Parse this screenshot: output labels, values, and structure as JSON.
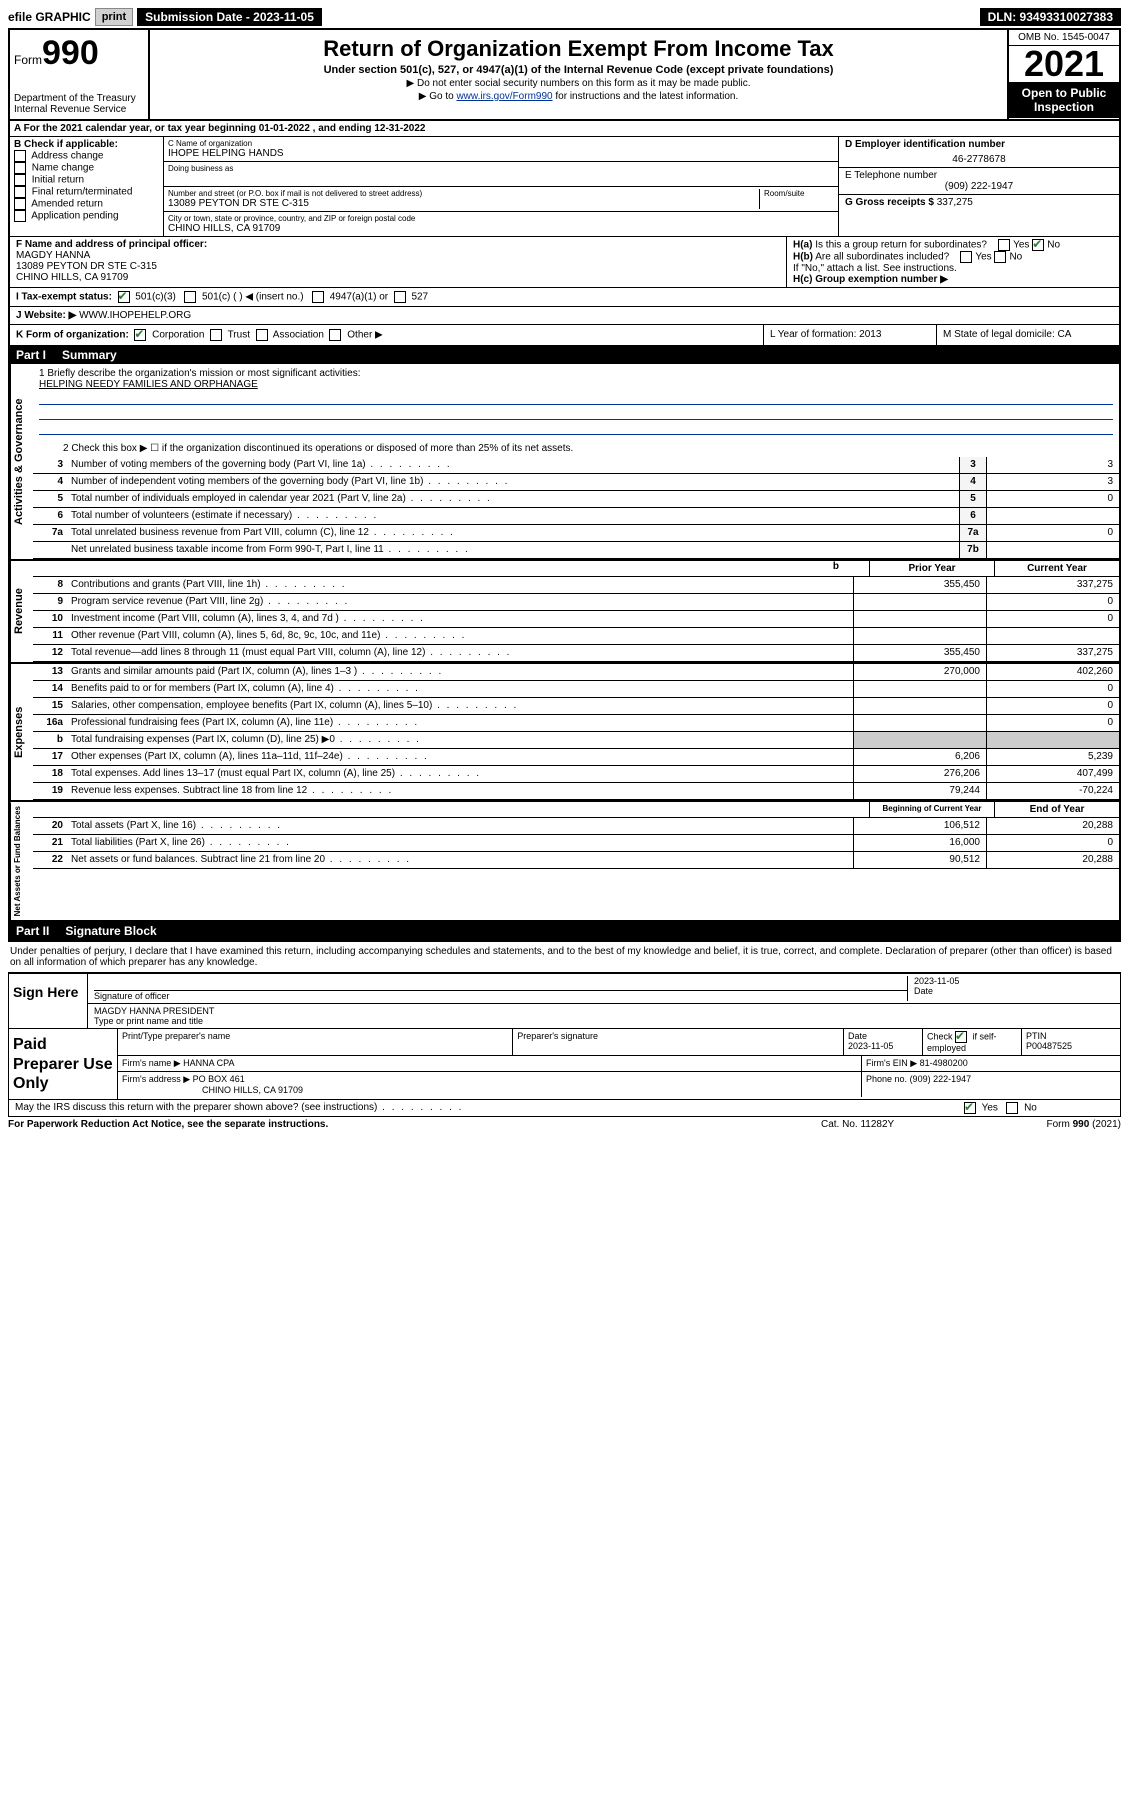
{
  "topbar": {
    "efile": "efile GRAPHIC",
    "print": "print",
    "sub_label": "Submission Date - 2023-11-05",
    "dln": "DLN: 93493310027383"
  },
  "header": {
    "form_word": "Form",
    "form_num": "990",
    "dept": "Department of the Treasury",
    "irs": "Internal Revenue Service",
    "title": "Return of Organization Exempt From Income Tax",
    "sub1": "Under section 501(c), 527, or 4947(a)(1) of the Internal Revenue Code (except private foundations)",
    "sub2": "▶ Do not enter social security numbers on this form as it may be made public.",
    "sub3_pre": "▶ Go to ",
    "sub3_link": "www.irs.gov/Form990",
    "sub3_post": " for instructions and the latest information.",
    "omb": "OMB No. 1545-0047",
    "year": "2021",
    "open": "Open to Public Inspection"
  },
  "a_line": "A For the 2021 calendar year, or tax year beginning 01-01-2022   , and ending 12-31-2022",
  "b": {
    "label": "B Check if applicable:",
    "items": [
      "Address change",
      "Name change",
      "Initial return",
      "Final return/terminated",
      "Amended return",
      "Application pending"
    ]
  },
  "c": {
    "name_label": "C Name of organization",
    "name": "IHOPE HELPING HANDS",
    "dba_label": "Doing business as",
    "addr_label": "Number and street (or P.O. box if mail is not delivered to street address)",
    "room_label": "Room/suite",
    "addr": "13089 PEYTON DR STE C-315",
    "city_label": "City or town, state or province, country, and ZIP or foreign postal code",
    "city": "CHINO HILLS, CA  91709"
  },
  "d": {
    "ein_label": "D Employer identification number",
    "ein": "46-2778678",
    "phone_label": "E Telephone number",
    "phone": "(909) 222-1947",
    "gross_label": "G Gross receipts $",
    "gross": "337,275"
  },
  "f": {
    "label": "F Name and address of principal officer:",
    "name": "MAGDY HANNA",
    "addr1": "13089 PEYTON DR STE C-315",
    "addr2": "CHINO HILLS, CA  91709"
  },
  "h": {
    "a_label": "H(a) Is this a group return for subordinates?",
    "yes": "Yes",
    "no": "No",
    "b_label": "H(b) Are all subordinates included?",
    "b_note": "If \"No,\" attach a list. See instructions.",
    "c_label": "H(c) Group exemption number ▶"
  },
  "i": {
    "label": "I   Tax-exempt status:",
    "c3": "501(c)(3)",
    "c_other": "501(c) (  ) ◀ (insert no.)",
    "a1": "4947(a)(1) or",
    "s527": "527"
  },
  "j": {
    "label": "J   Website: ▶",
    "val": "WWW.IHOPEHELP.ORG"
  },
  "k": {
    "label": "K Form of organization:",
    "corp": "Corporation",
    "trust": "Trust",
    "assoc": "Association",
    "other": "Other ▶"
  },
  "l": {
    "label": "L Year of formation: 2013"
  },
  "m": {
    "label": "M State of legal domicile: CA"
  },
  "part1": {
    "label": "Part I",
    "title": "Summary"
  },
  "mission": {
    "q": "1  Briefly describe the organization's mission or most significant activities:",
    "text": "HELPING NEEDY FAMILIES AND ORPHANAGE"
  },
  "line2": "2  Check this box ▶ ☐ if the organization discontinued its operations or disposed of more than 25% of its net assets.",
  "gov_lines": [
    {
      "n": "3",
      "d": "Number of voting members of the governing body (Part VI, line 1a)",
      "box": "3",
      "v": "3"
    },
    {
      "n": "4",
      "d": "Number of independent voting members of the governing body (Part VI, line 1b)",
      "box": "4",
      "v": "3"
    },
    {
      "n": "5",
      "d": "Total number of individuals employed in calendar year 2021 (Part V, line 2a)",
      "box": "5",
      "v": "0"
    },
    {
      "n": "6",
      "d": "Total number of volunteers (estimate if necessary)",
      "box": "6",
      "v": ""
    },
    {
      "n": "7a",
      "d": "Total unrelated business revenue from Part VIII, column (C), line 12",
      "box": "7a",
      "v": "0"
    },
    {
      "n": "",
      "d": "Net unrelated business taxable income from Form 990-T, Part I, line 11",
      "box": "7b",
      "v": ""
    }
  ],
  "col_head": {
    "blank": "b",
    "prior": "Prior Year",
    "curr": "Current Year"
  },
  "rev_lines": [
    {
      "n": "8",
      "d": "Contributions and grants (Part VIII, line 1h)",
      "p": "355,450",
      "c": "337,275"
    },
    {
      "n": "9",
      "d": "Program service revenue (Part VIII, line 2g)",
      "p": "",
      "c": "0"
    },
    {
      "n": "10",
      "d": "Investment income (Part VIII, column (A), lines 3, 4, and 7d )",
      "p": "",
      "c": "0"
    },
    {
      "n": "11",
      "d": "Other revenue (Part VIII, column (A), lines 5, 6d, 8c, 9c, 10c, and 11e)",
      "p": "",
      "c": ""
    },
    {
      "n": "12",
      "d": "Total revenue—add lines 8 through 11 (must equal Part VIII, column (A), line 12)",
      "p": "355,450",
      "c": "337,275"
    }
  ],
  "exp_lines": [
    {
      "n": "13",
      "d": "Grants and similar amounts paid (Part IX, column (A), lines 1–3 )",
      "p": "270,000",
      "c": "402,260"
    },
    {
      "n": "14",
      "d": "Benefits paid to or for members (Part IX, column (A), line 4)",
      "p": "",
      "c": "0"
    },
    {
      "n": "15",
      "d": "Salaries, other compensation, employee benefits (Part IX, column (A), lines 5–10)",
      "p": "",
      "c": "0"
    },
    {
      "n": "16a",
      "d": "Professional fundraising fees (Part IX, column (A), line 11e)",
      "p": "",
      "c": "0"
    },
    {
      "n": "b",
      "d": "Total fundraising expenses (Part IX, column (D), line 25) ▶0",
      "p": "GRAY",
      "c": "GRAY"
    },
    {
      "n": "17",
      "d": "Other expenses (Part IX, column (A), lines 11a–11d, 11f–24e)",
      "p": "6,206",
      "c": "5,239"
    },
    {
      "n": "18",
      "d": "Total expenses. Add lines 13–17 (must equal Part IX, column (A), line 25)",
      "p": "276,206",
      "c": "407,499"
    },
    {
      "n": "19",
      "d": "Revenue less expenses. Subtract line 18 from line 12",
      "p": "79,244",
      "c": "-70,224"
    }
  ],
  "net_head": {
    "prior": "Beginning of Current Year",
    "curr": "End of Year"
  },
  "net_lines": [
    {
      "n": "20",
      "d": "Total assets (Part X, line 16)",
      "p": "106,512",
      "c": "20,288"
    },
    {
      "n": "21",
      "d": "Total liabilities (Part X, line 26)",
      "p": "16,000",
      "c": "0"
    },
    {
      "n": "22",
      "d": "Net assets or fund balances. Subtract line 21 from line 20",
      "p": "90,512",
      "c": "20,288"
    }
  ],
  "vert": {
    "gov": "Activities & Governance",
    "rev": "Revenue",
    "exp": "Expenses",
    "net": "Net Assets or Fund Balances"
  },
  "part2": {
    "label": "Part II",
    "title": "Signature Block"
  },
  "sig": {
    "intro": "Under penalties of perjury, I declare that I have examined this return, including accompanying schedules and statements, and to the best of my knowledge and belief, it is true, correct, and complete. Declaration of preparer (other than officer) is based on all information of which preparer has any knowledge.",
    "sign_here": "Sign Here",
    "officer_label": "Signature of officer",
    "date_label": "Date",
    "date": "2023-11-05",
    "name": "MAGDY HANNA  PRESIDENT",
    "name_label": "Type or print name and title"
  },
  "paid": {
    "title": "Paid Preparer Use Only",
    "h1": "Print/Type preparer's name",
    "h2": "Preparer's signature",
    "h3": "Date",
    "date": "2023-11-05",
    "h4_pre": "Check",
    "h4_post": "if self-employed",
    "h5": "PTIN",
    "ptin": "P00487525",
    "firm_label": "Firm's name  ▶",
    "firm": "HANNA CPA",
    "ein_label": "Firm's EIN ▶",
    "ein": "81-4980200",
    "addr_label": "Firm's address ▶",
    "addr1": "PO BOX 461",
    "addr2": "CHINO HILLS, CA  91709",
    "phone_label": "Phone no.",
    "phone": "(909) 222-1947"
  },
  "discuss": "May the IRS discuss this return with the preparer shown above? (see instructions)",
  "footer": {
    "l": "For Paperwork Reduction Act Notice, see the separate instructions.",
    "m": "Cat. No. 11282Y",
    "r": "Form 990 (2021)"
  }
}
